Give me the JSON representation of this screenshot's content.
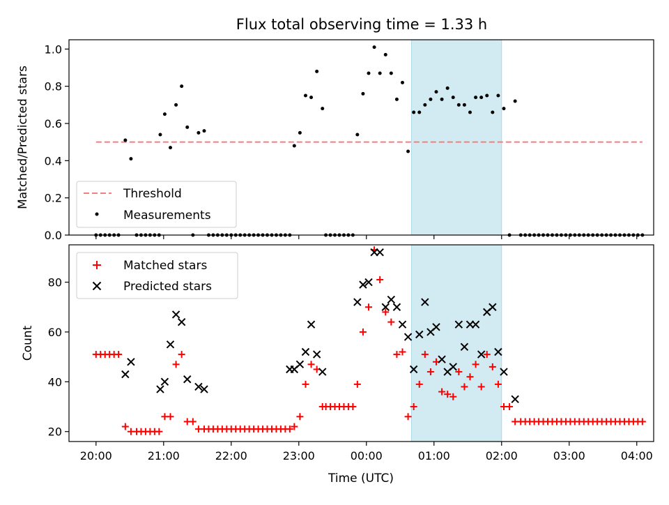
{
  "title": "Flux total observing time = 1.33 h",
  "colors": {
    "threshold": "#f08080",
    "measurements": "#000000",
    "matched": "#ff0000",
    "predicted": "#000000",
    "shade": "#add8e6"
  },
  "chart_data": [
    {
      "type": "scatter",
      "ylabel": "Matched/Predicted stars",
      "xlabel": "",
      "x_unit": "minutes since 20:00 UTC",
      "xlim": [
        -24,
        495
      ],
      "ylim": [
        0,
        1.05
      ],
      "yticks": [
        "0.0",
        "0.2",
        "0.4",
        "0.6",
        "0.8",
        "1.0"
      ],
      "xticks": [
        0,
        60,
        120,
        180,
        240,
        300,
        360,
        420,
        480
      ],
      "xtick_labels": [
        "20:00",
        "21:00",
        "22:00",
        "23:00",
        "00:00",
        "01:00",
        "02:00",
        "03:00",
        "04:00"
      ],
      "shaded_span": [
        280,
        360
      ],
      "legend_position": "lower-left",
      "threshold": {
        "name": "Threshold",
        "value": 0.5,
        "x_range": [
          0,
          485
        ]
      },
      "series": [
        {
          "name": "Measurements",
          "marker": "dot",
          "points": [
            [
              0,
              0
            ],
            [
              4,
              0
            ],
            [
              8,
              0
            ],
            [
              12,
              0
            ],
            [
              16,
              0
            ],
            [
              20,
              0
            ],
            [
              26,
              0.51
            ],
            [
              31,
              0.41
            ],
            [
              36,
              0
            ],
            [
              40,
              0
            ],
            [
              44,
              0
            ],
            [
              48,
              0
            ],
            [
              52,
              0
            ],
            [
              56,
              0
            ],
            [
              57,
              0.54
            ],
            [
              61,
              0.65
            ],
            [
              66,
              0.47
            ],
            [
              71,
              0.7
            ],
            [
              76,
              0.8
            ],
            [
              81,
              0.58
            ],
            [
              86,
              0
            ],
            [
              91,
              0.55
            ],
            [
              96,
              0.56
            ],
            [
              100,
              0
            ],
            [
              104,
              0
            ],
            [
              108,
              0
            ],
            [
              112,
              0
            ],
            [
              116,
              0
            ],
            [
              120,
              0
            ],
            [
              124,
              0
            ],
            [
              128,
              0
            ],
            [
              132,
              0
            ],
            [
              136,
              0
            ],
            [
              140,
              0
            ],
            [
              144,
              0
            ],
            [
              148,
              0
            ],
            [
              152,
              0
            ],
            [
              156,
              0
            ],
            [
              160,
              0
            ],
            [
              164,
              0
            ],
            [
              168,
              0
            ],
            [
              172,
              0
            ],
            [
              176,
              0.48
            ],
            [
              181,
              0.55
            ],
            [
              186,
              0.75
            ],
            [
              191,
              0.74
            ],
            [
              196,
              0.88
            ],
            [
              201,
              0.68
            ],
            [
              204,
              0
            ],
            [
              208,
              0
            ],
            [
              212,
              0
            ],
            [
              216,
              0
            ],
            [
              220,
              0
            ],
            [
              224,
              0
            ],
            [
              228,
              0
            ],
            [
              232,
              0.54
            ],
            [
              237,
              0.76
            ],
            [
              242,
              0.87
            ],
            [
              247,
              1.01
            ],
            [
              252,
              0.87
            ],
            [
              257,
              0.97
            ],
            [
              262,
              0.87
            ],
            [
              267,
              0.73
            ],
            [
              272,
              0.82
            ],
            [
              277,
              0.45
            ],
            [
              282,
              0.66
            ],
            [
              287,
              0.66
            ],
            [
              292,
              0.7
            ],
            [
              297,
              0.73
            ],
            [
              302,
              0.77
            ],
            [
              307,
              0.73
            ],
            [
              312,
              0.79
            ],
            [
              317,
              0.74
            ],
            [
              322,
              0.7
            ],
            [
              327,
              0.7
            ],
            [
              332,
              0.66
            ],
            [
              337,
              0.74
            ],
            [
              342,
              0.74
            ],
            [
              347,
              0.75
            ],
            [
              352,
              0.66
            ],
            [
              357,
              0.75
            ],
            [
              362,
              0.68
            ],
            [
              367,
              0
            ],
            [
              372,
              0.72
            ],
            [
              377,
              0
            ],
            [
              381,
              0
            ],
            [
              385,
              0
            ],
            [
              389,
              0
            ],
            [
              393,
              0
            ],
            [
              397,
              0
            ],
            [
              401,
              0
            ],
            [
              405,
              0
            ],
            [
              409,
              0
            ],
            [
              413,
              0
            ],
            [
              417,
              0
            ],
            [
              421,
              0
            ],
            [
              425,
              0
            ],
            [
              429,
              0
            ],
            [
              433,
              0
            ],
            [
              437,
              0
            ],
            [
              441,
              0
            ],
            [
              445,
              0
            ],
            [
              449,
              0
            ],
            [
              453,
              0
            ],
            [
              457,
              0
            ],
            [
              461,
              0
            ],
            [
              465,
              0
            ],
            [
              469,
              0
            ],
            [
              473,
              0
            ],
            [
              477,
              0
            ],
            [
              481,
              0
            ],
            [
              485,
              0
            ]
          ]
        }
      ]
    },
    {
      "type": "scatter",
      "ylabel": "Count",
      "xlabel": "Time (UTC)",
      "x_unit": "minutes since 20:00 UTC",
      "xlim": [
        -24,
        495
      ],
      "ylim": [
        16,
        95
      ],
      "yticks": [
        "20",
        "40",
        "60",
        "80"
      ],
      "xticks": [
        0,
        60,
        120,
        180,
        240,
        300,
        360,
        420,
        480
      ],
      "xtick_labels": [
        "20:00",
        "21:00",
        "22:00",
        "23:00",
        "00:00",
        "01:00",
        "02:00",
        "03:00",
        "04:00"
      ],
      "shaded_span": [
        280,
        360
      ],
      "legend_position": "upper-left",
      "series": [
        {
          "name": "Matched stars",
          "marker": "plus",
          "points": [
            [
              0,
              51
            ],
            [
              4,
              51
            ],
            [
              8,
              51
            ],
            [
              12,
              51
            ],
            [
              16,
              51
            ],
            [
              20,
              51
            ],
            [
              26,
              22
            ],
            [
              31,
              20
            ],
            [
              36,
              20
            ],
            [
              40,
              20
            ],
            [
              44,
              20
            ],
            [
              48,
              20
            ],
            [
              52,
              20
            ],
            [
              56,
              20
            ],
            [
              61,
              26
            ],
            [
              66,
              26
            ],
            [
              71,
              47
            ],
            [
              76,
              51
            ],
            [
              81,
              24
            ],
            [
              86,
              24
            ],
            [
              91,
              21
            ],
            [
              96,
              21
            ],
            [
              100,
              21
            ],
            [
              104,
              21
            ],
            [
              108,
              21
            ],
            [
              112,
              21
            ],
            [
              116,
              21
            ],
            [
              120,
              21
            ],
            [
              124,
              21
            ],
            [
              128,
              21
            ],
            [
              132,
              21
            ],
            [
              136,
              21
            ],
            [
              140,
              21
            ],
            [
              144,
              21
            ],
            [
              148,
              21
            ],
            [
              152,
              21
            ],
            [
              156,
              21
            ],
            [
              160,
              21
            ],
            [
              164,
              21
            ],
            [
              168,
              21
            ],
            [
              172,
              21
            ],
            [
              176,
              22
            ],
            [
              181,
              26
            ],
            [
              186,
              39
            ],
            [
              191,
              47
            ],
            [
              196,
              45
            ],
            [
              201,
              30
            ],
            [
              204,
              30
            ],
            [
              208,
              30
            ],
            [
              212,
              30
            ],
            [
              216,
              30
            ],
            [
              220,
              30
            ],
            [
              224,
              30
            ],
            [
              228,
              30
            ],
            [
              232,
              39
            ],
            [
              237,
              60
            ],
            [
              242,
              70
            ],
            [
              247,
              93
            ],
            [
              252,
              81
            ],
            [
              257,
              68
            ],
            [
              262,
              64
            ],
            [
              267,
              51
            ],
            [
              272,
              52
            ],
            [
              277,
              26
            ],
            [
              282,
              30
            ],
            [
              287,
              39
            ],
            [
              292,
              51
            ],
            [
              297,
              44
            ],
            [
              302,
              48
            ],
            [
              307,
              36
            ],
            [
              312,
              35
            ],
            [
              317,
              34
            ],
            [
              322,
              44
            ],
            [
              327,
              38
            ],
            [
              332,
              42
            ],
            [
              337,
              47
            ],
            [
              342,
              38
            ],
            [
              347,
              51
            ],
            [
              352,
              46
            ],
            [
              357,
              39
            ],
            [
              362,
              30
            ],
            [
              367,
              30
            ],
            [
              372,
              24
            ],
            [
              377,
              24
            ],
            [
              381,
              24
            ],
            [
              385,
              24
            ],
            [
              389,
              24
            ],
            [
              393,
              24
            ],
            [
              397,
              24
            ],
            [
              401,
              24
            ],
            [
              405,
              24
            ],
            [
              409,
              24
            ],
            [
              413,
              24
            ],
            [
              417,
              24
            ],
            [
              421,
              24
            ],
            [
              425,
              24
            ],
            [
              429,
              24
            ],
            [
              433,
              24
            ],
            [
              437,
              24
            ],
            [
              441,
              24
            ],
            [
              445,
              24
            ],
            [
              449,
              24
            ],
            [
              453,
              24
            ],
            [
              457,
              24
            ],
            [
              461,
              24
            ],
            [
              465,
              24
            ],
            [
              469,
              24
            ],
            [
              473,
              24
            ],
            [
              477,
              24
            ],
            [
              481,
              24
            ],
            [
              485,
              24
            ]
          ]
        },
        {
          "name": "Predicted stars",
          "marker": "x",
          "points": [
            [
              26,
              43
            ],
            [
              31,
              48
            ],
            [
              57,
              37
            ],
            [
              61,
              40
            ],
            [
              66,
              55
            ],
            [
              71,
              67
            ],
            [
              76,
              64
            ],
            [
              81,
              41
            ],
            [
              91,
              38
            ],
            [
              96,
              37
            ],
            [
              172,
              45
            ],
            [
              176,
              45
            ],
            [
              181,
              47
            ],
            [
              186,
              52
            ],
            [
              191,
              63
            ],
            [
              196,
              51
            ],
            [
              201,
              44
            ],
            [
              232,
              72
            ],
            [
              237,
              79
            ],
            [
              242,
              80
            ],
            [
              247,
              92
            ],
            [
              252,
              92
            ],
            [
              257,
              70
            ],
            [
              262,
              73
            ],
            [
              267,
              70
            ],
            [
              272,
              63
            ],
            [
              277,
              58
            ],
            [
              282,
              45
            ],
            [
              287,
              59
            ],
            [
              292,
              72
            ],
            [
              297,
              60
            ],
            [
              302,
              62
            ],
            [
              307,
              49
            ],
            [
              312,
              44
            ],
            [
              317,
              46
            ],
            [
              322,
              63
            ],
            [
              327,
              54
            ],
            [
              332,
              63
            ],
            [
              337,
              63
            ],
            [
              342,
              51
            ],
            [
              347,
              68
            ],
            [
              352,
              70
            ],
            [
              357,
              52
            ],
            [
              362,
              44
            ],
            [
              372,
              33
            ]
          ]
        }
      ]
    }
  ],
  "top": {
    "legend": {
      "threshold_label": "Threshold",
      "measurements_label": "Measurements"
    }
  },
  "bottom": {
    "legend": {
      "matched_label": "Matched stars",
      "predicted_label": "Predicted stars"
    }
  }
}
